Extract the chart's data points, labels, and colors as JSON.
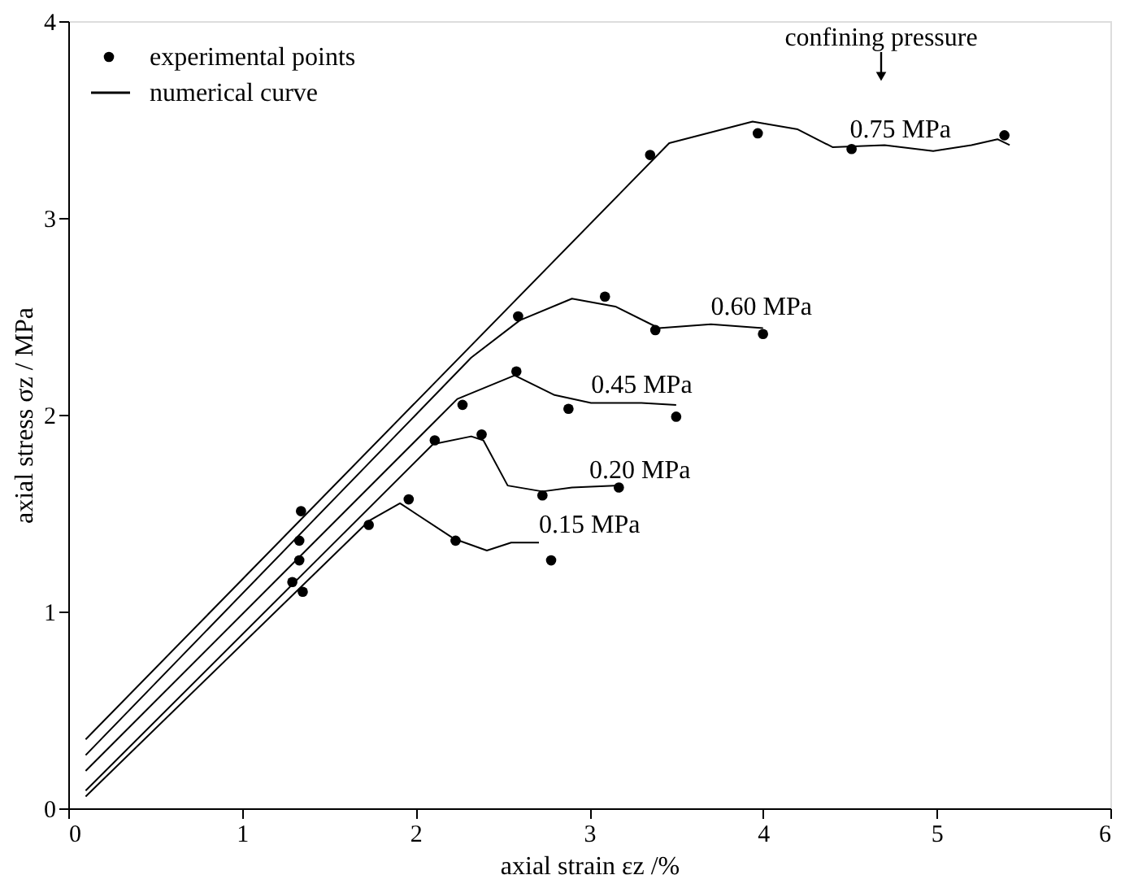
{
  "chart_data": {
    "type": "line",
    "xlabel": "axial strain εz /%",
    "ylabel": "axial stress σz / MPa",
    "xlim": [
      0,
      6
    ],
    "ylim": [
      0,
      4
    ],
    "xticks": [
      0,
      1,
      2,
      3,
      4,
      5,
      6
    ],
    "yticks": [
      0,
      1,
      2,
      3,
      4
    ],
    "grid": false,
    "legend": "top left",
    "line_style": "solid",
    "series": [
      {
        "type": "scatter",
        "name": "experimental points",
        "color": "#000000",
        "marker": "circle",
        "x": [
          1.34,
          3.35,
          3.97,
          4.51,
          5.39,
          1.33,
          2.59,
          3.09,
          3.38,
          4.0,
          1.33,
          2.27,
          2.58,
          2.88,
          3.5,
          1.29,
          2.11,
          2.38,
          2.73,
          3.17,
          1.35,
          1.73,
          1.96,
          2.23,
          2.78
        ],
        "values": [
          1.51,
          3.32,
          3.43,
          3.35,
          3.42,
          1.36,
          2.5,
          2.6,
          2.43,
          2.41,
          1.26,
          2.05,
          2.22,
          2.03,
          1.99,
          1.15,
          1.87,
          1.9,
          1.59,
          1.63,
          1.1,
          1.44,
          1.57,
          1.36,
          1.26
        ]
      },
      {
        "type": "line",
        "name": "numerical curve",
        "color": "#000000",
        "x": [
          0.1,
          3.46,
          3.94,
          4.2,
          4.4,
          4.7,
          4.98,
          5.2,
          5.35,
          5.42
        ],
        "values": [
          0.35,
          3.38,
          3.49,
          3.45,
          3.36,
          3.37,
          3.34,
          3.37,
          3.4,
          3.37
        ]
      },
      {
        "type": "line",
        "color": "#000000",
        "x": [
          0.1,
          2.32,
          2.6,
          2.9,
          3.15,
          3.4,
          3.7,
          4.0
        ],
        "values": [
          0.27,
          2.29,
          2.48,
          2.59,
          2.55,
          2.44,
          2.46,
          2.44
        ]
      },
      {
        "type": "line",
        "color": "#000000",
        "x": [
          0.1,
          2.24,
          2.57,
          2.8,
          3.01,
          3.3,
          3.5
        ],
        "values": [
          0.19,
          2.08,
          2.2,
          2.1,
          2.06,
          2.06,
          2.05
        ]
      },
      {
        "type": "line",
        "color": "#000000",
        "x": [
          0.1,
          2.1,
          2.32,
          2.39,
          2.53,
          2.73,
          2.9,
          3.17
        ],
        "values": [
          0.09,
          1.85,
          1.89,
          1.87,
          1.64,
          1.61,
          1.63,
          1.64
        ]
      },
      {
        "type": "line",
        "color": "#000000",
        "x": [
          0.1,
          1.73,
          1.91,
          2.22,
          2.41,
          2.55,
          2.71
        ],
        "values": [
          0.06,
          1.46,
          1.55,
          1.37,
          1.31,
          1.35,
          1.35
        ]
      }
    ],
    "annotations": [
      "confining pressure",
      {
        "text": "0.75 MPa",
        "x": 4.5,
        "y": 3.36
      },
      {
        "text": "0.60 MPa",
        "x": 3.7,
        "y": 2.46
      },
      {
        "text": "0.45 MPa",
        "x": 3.01,
        "y": 2.06
      },
      {
        "text": "0.20 MPa",
        "x": 3.0,
        "y": 1.63
      },
      {
        "text": "0.15 MPa",
        "x": 2.71,
        "y": 1.35
      }
    ]
  }
}
